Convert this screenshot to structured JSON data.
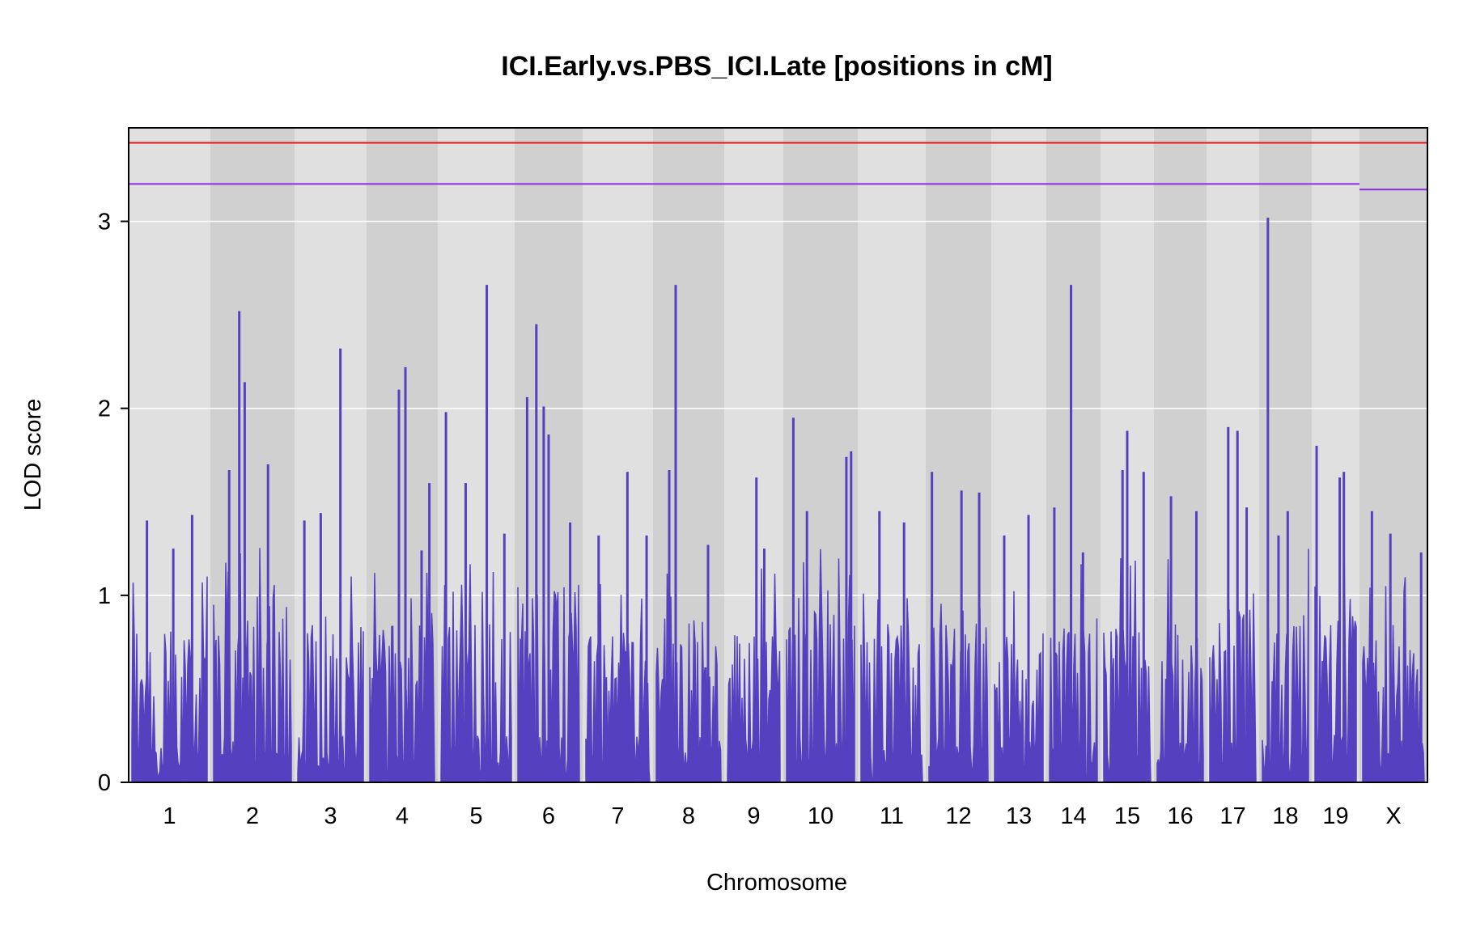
{
  "chart_data": {
    "type": "line",
    "title": "ICI.Early.vs.PBS_ICI.Late [positions in cM]",
    "xlabel": "Chromosome",
    "ylabel": "LOD score",
    "ylim": [
      0,
      3.5
    ],
    "yticks": [
      0,
      1,
      2,
      3
    ],
    "series_color": "#5540BF",
    "thresholds": [
      {
        "name": "upper",
        "color": "#E31A1C",
        "autosome_value": 3.42,
        "x_value": 3.42
      },
      {
        "name": "lower",
        "color": "#8A2BE2",
        "autosome_value": 3.2,
        "x_value": 3.17
      }
    ],
    "chromosomes": [
      {
        "name": "1",
        "base": 0.8,
        "peaks": [
          [
            0.2,
            1.4
          ],
          [
            0.55,
            1.25
          ],
          [
            0.8,
            1.43
          ]
        ]
      },
      {
        "name": "2",
        "base": 1.0,
        "peaks": [
          [
            0.2,
            1.67
          ],
          [
            0.33,
            2.52
          ],
          [
            0.4,
            2.14
          ],
          [
            0.7,
            1.7
          ]
        ]
      },
      {
        "name": "3",
        "base": 0.85,
        "peaks": [
          [
            0.1,
            1.4
          ],
          [
            0.35,
            1.44
          ],
          [
            0.65,
            2.32
          ]
        ]
      },
      {
        "name": "4",
        "base": 0.85,
        "peaks": [
          [
            0.45,
            2.1
          ],
          [
            0.55,
            2.22
          ],
          [
            0.8,
            1.24
          ],
          [
            0.92,
            1.6
          ]
        ]
      },
      {
        "name": "5",
        "base": 0.85,
        "peaks": [
          [
            0.07,
            1.98
          ],
          [
            0.35,
            1.6
          ],
          [
            0.65,
            2.66
          ],
          [
            0.9,
            1.33
          ]
        ]
      },
      {
        "name": "6",
        "base": 1.05,
        "peaks": [
          [
            0.15,
            2.06
          ],
          [
            0.3,
            2.45
          ],
          [
            0.42,
            2.01
          ],
          [
            0.5,
            1.86
          ],
          [
            0.85,
            1.39
          ]
        ]
      },
      {
        "name": "7",
        "base": 0.8,
        "peaks": [
          [
            0.2,
            1.32
          ],
          [
            0.65,
            1.66
          ],
          [
            0.95,
            1.32
          ]
        ]
      },
      {
        "name": "8",
        "base": 0.85,
        "peaks": [
          [
            0.2,
            1.67
          ],
          [
            0.3,
            2.66
          ],
          [
            0.8,
            1.27
          ]
        ]
      },
      {
        "name": "9",
        "base": 0.8,
        "peaks": [
          [
            0.55,
            1.63
          ],
          [
            0.7,
            1.25
          ]
        ]
      },
      {
        "name": "10",
        "base": 1.0,
        "peaks": [
          [
            0.1,
            1.95
          ],
          [
            0.3,
            1.45
          ],
          [
            0.88,
            1.74
          ],
          [
            0.95,
            1.77
          ]
        ]
      },
      {
        "name": "11",
        "base": 0.85,
        "peaks": [
          [
            0.3,
            1.45
          ],
          [
            0.7,
            1.39
          ]
        ]
      },
      {
        "name": "12",
        "base": 0.85,
        "peaks": [
          [
            0.05,
            1.66
          ],
          [
            0.55,
            1.56
          ],
          [
            0.85,
            1.55
          ]
        ]
      },
      {
        "name": "13",
        "base": 0.7,
        "peaks": [
          [
            0.2,
            1.32
          ],
          [
            0.7,
            1.43
          ]
        ]
      },
      {
        "name": "14",
        "base": 0.85,
        "peaks": [
          [
            0.1,
            1.47
          ],
          [
            0.45,
            2.66
          ],
          [
            0.7,
            1.23
          ]
        ]
      },
      {
        "name": "15",
        "base": 0.85,
        "peaks": [
          [
            0.4,
            1.67
          ],
          [
            0.5,
            1.88
          ],
          [
            0.85,
            1.66
          ]
        ]
      },
      {
        "name": "16",
        "base": 0.85,
        "peaks": [
          [
            0.3,
            1.53
          ],
          [
            0.85,
            1.45
          ]
        ]
      },
      {
        "name": "17",
        "base": 0.95,
        "peaks": [
          [
            0.4,
            1.9
          ],
          [
            0.6,
            1.88
          ],
          [
            0.8,
            1.47
          ]
        ]
      },
      {
        "name": "18",
        "base": 0.9,
        "peaks": [
          [
            0.12,
            3.02
          ],
          [
            0.35,
            1.32
          ],
          [
            0.55,
            1.45
          ]
        ]
      },
      {
        "name": "19",
        "base": 1.0,
        "peaks": [
          [
            0.04,
            1.8
          ],
          [
            0.6,
            1.63
          ],
          [
            0.7,
            1.66
          ]
        ]
      },
      {
        "name": "X",
        "base": 0.75,
        "peaks": [
          [
            0.15,
            1.45
          ],
          [
            0.45,
            1.33
          ],
          [
            0.95,
            1.23
          ]
        ]
      }
    ]
  }
}
